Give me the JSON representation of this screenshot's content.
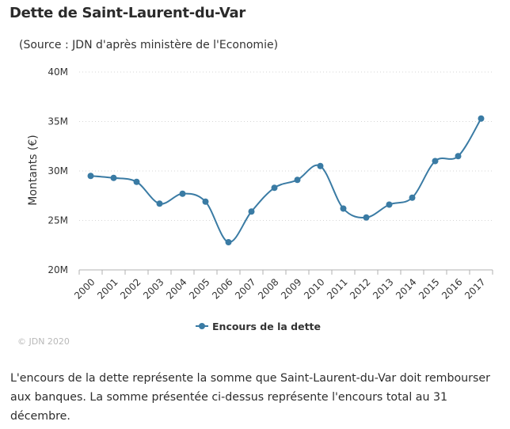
{
  "header": {
    "title": "Dette de Saint-Laurent-du-Var",
    "subtitle": "(Source : JDN d'après ministère de l'Economie)"
  },
  "footer": {
    "credits": "© JDN 2020",
    "description": "L'encours de la dette représente la somme que Saint-Laurent-du-Var doit rembourser aux banques. La somme présentée ci-dessus représente l'encours total au 31 décembre."
  },
  "colors": {
    "series": "#3a7ba4",
    "grid": "#d6d6d6",
    "axis": "#b0b0b0"
  },
  "chart_data": {
    "type": "line",
    "title": "Dette de Saint-Laurent-du-Var",
    "subtitle": "(Source : JDN d'après ministère de l'Economie)",
    "xlabel": "",
    "ylabel": "Montants (€)",
    "categories": [
      "2000",
      "2001",
      "2002",
      "2003",
      "2004",
      "2005",
      "2006",
      "2007",
      "2008",
      "2009",
      "2010",
      "2011",
      "2012",
      "2013",
      "2014",
      "2015",
      "2016",
      "2017"
    ],
    "yticks": [
      "20M",
      "25M",
      "30M",
      "35M",
      "40M"
    ],
    "ylim": [
      20000000,
      40000000
    ],
    "grid": "horizontal dotted",
    "legend_position": "bottom-center",
    "series": [
      {
        "name": "Encours de la dette",
        "values": [
          29500000,
          29300000,
          28900000,
          26700000,
          27700000,
          26900000,
          22800000,
          25900000,
          28300000,
          29100000,
          30500000,
          26200000,
          25300000,
          26600000,
          27300000,
          31000000,
          31500000,
          35300000
        ]
      }
    ]
  }
}
